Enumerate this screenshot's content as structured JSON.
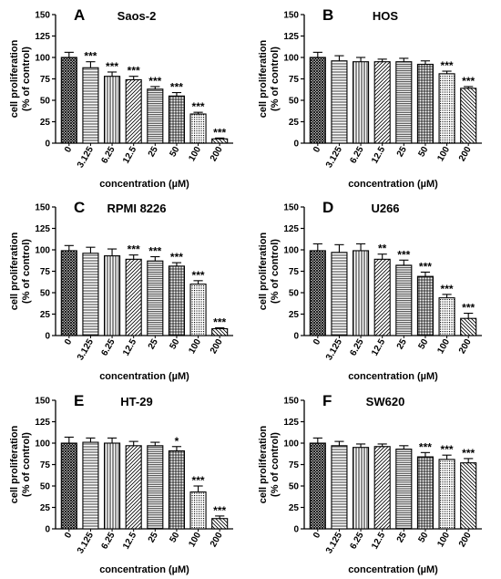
{
  "chart_data": [
    {
      "type": "bar",
      "panel": "A",
      "title": "Saos-2",
      "xlabel": "concentration (µM)",
      "ylabel": [
        "cell proliferation",
        "(% of control)"
      ],
      "ylim": [
        0,
        150
      ],
      "yticks": [
        "0",
        "25",
        "50",
        "75",
        "100",
        "125",
        "150"
      ],
      "categories": [
        "0",
        "3.125",
        "6.25",
        "12.5",
        "25",
        "50",
        "100",
        "200"
      ],
      "values": [
        100,
        88,
        78,
        74,
        63,
        55,
        34,
        5
      ],
      "errors": [
        6,
        7,
        5,
        4,
        3,
        4,
        2,
        1
      ],
      "significance": [
        "",
        "***",
        "***",
        "***",
        "***",
        "***",
        "***",
        "***"
      ]
    },
    {
      "type": "bar",
      "panel": "B",
      "title": "HOS",
      "xlabel": "concentration (µM)",
      "ylabel": [
        "cell proliferation",
        "(% of control)"
      ],
      "ylim": [
        0,
        150
      ],
      "yticks": [
        "0",
        "25",
        "50",
        "75",
        "100",
        "125",
        "150"
      ],
      "categories": [
        "0",
        "3.125",
        "6.25",
        "12.5",
        "25",
        "50",
        "100",
        "200"
      ],
      "values": [
        100,
        96,
        95,
        95,
        95,
        92,
        81,
        64
      ],
      "errors": [
        6,
        6,
        5,
        3,
        4,
        4,
        3,
        2
      ],
      "significance": [
        "",
        "",
        "",
        "",
        "",
        "",
        "***",
        "***"
      ]
    },
    {
      "type": "bar",
      "panel": "C",
      "title": "RPMI 8226",
      "xlabel": "concentration (µM)",
      "ylabel": [
        "cell proliferation",
        "(% of control)"
      ],
      "ylim": [
        0,
        150
      ],
      "yticks": [
        "0",
        "25",
        "50",
        "75",
        "100",
        "125",
        "150"
      ],
      "categories": [
        "0",
        "3.125",
        "6.25",
        "12.5",
        "25",
        "50",
        "100",
        "200"
      ],
      "values": [
        99,
        96,
        93,
        89,
        87,
        81,
        60,
        8
      ],
      "errors": [
        6,
        7,
        8,
        5,
        5,
        4,
        4,
        1
      ],
      "significance": [
        "",
        "",
        "",
        "***",
        "***",
        "***",
        "***",
        "***"
      ]
    },
    {
      "type": "bar",
      "panel": "D",
      "title": "U266",
      "xlabel": "concentration (µM)",
      "ylabel": [
        "cell proliferation",
        "(% of control)"
      ],
      "ylim": [
        0,
        150
      ],
      "yticks": [
        "0",
        "25",
        "50",
        "75",
        "100",
        "125",
        "150"
      ],
      "categories": [
        "0",
        "3.125",
        "6.25",
        "12.5",
        "25",
        "50",
        "100",
        "200"
      ],
      "values": [
        99,
        97,
        99,
        89,
        82,
        69,
        44,
        20
      ],
      "errors": [
        8,
        9,
        8,
        6,
        6,
        5,
        4,
        6
      ],
      "significance": [
        "",
        "",
        "",
        "**",
        "***",
        "***",
        "***",
        "***"
      ]
    },
    {
      "type": "bar",
      "panel": "E",
      "title": "HT-29",
      "xlabel": "concentration (µM)",
      "ylabel": [
        "cell proliferation",
        "(% of control)"
      ],
      "ylim": [
        0,
        150
      ],
      "yticks": [
        "0",
        "25",
        "50",
        "75",
        "100",
        "125",
        "150"
      ],
      "categories": [
        "0",
        "3.125",
        "6.25",
        "12.5",
        "25",
        "50",
        "100",
        "200"
      ],
      "values": [
        100,
        101,
        100,
        97,
        97,
        91,
        43,
        12
      ],
      "errors": [
        7,
        5,
        6,
        5,
        4,
        5,
        7,
        3
      ],
      "significance": [
        "",
        "",
        "",
        "",
        "",
        "*",
        "***",
        "***"
      ]
    },
    {
      "type": "bar",
      "panel": "F",
      "title": "SW620",
      "xlabel": "concentration (µM)",
      "ylabel": [
        "cell proliferation",
        "(% of control)"
      ],
      "ylim": [
        0,
        150
      ],
      "yticks": [
        "0",
        "25",
        "50",
        "75",
        "100",
        "125",
        "150"
      ],
      "categories": [
        "0",
        "3.125",
        "6.25",
        "12.5",
        "25",
        "50",
        "100",
        "200"
      ],
      "values": [
        100,
        97,
        95,
        96,
        93,
        84,
        81,
        77
      ],
      "errors": [
        6,
        5,
        4,
        3,
        4,
        5,
        5,
        5
      ],
      "significance": [
        "",
        "",
        "",
        "",
        "",
        "***",
        "***",
        "***"
      ]
    }
  ]
}
